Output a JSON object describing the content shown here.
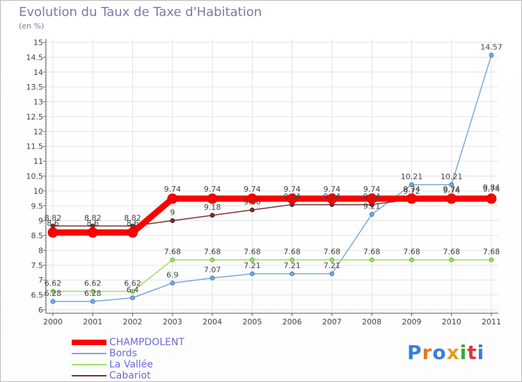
{
  "title": "Evolution du Taux de Taxe d'Habitation",
  "unit_label": "(en %)",
  "logo_text": "Proxiti",
  "chart_data": {
    "type": "line",
    "title": "Evolution du Taux de Taxe d'Habitation",
    "ylabel": "(en %)",
    "xlabel": "",
    "x": [
      "2000",
      "2001",
      "2002",
      "2003",
      "2004",
      "2005",
      "2006",
      "2007",
      "2008",
      "2009",
      "2010",
      "2011"
    ],
    "ylim": [
      6,
      15
    ],
    "yticks": [
      "6",
      "6.5",
      "7",
      "7.5",
      "8",
      "8.5",
      "9",
      "9.5",
      "10",
      "10.5",
      "11",
      "11.5",
      "12",
      "12.5",
      "13",
      "13.5",
      "14",
      "14.5",
      "15"
    ],
    "grid": true,
    "legend_position": "bottom-left",
    "series": [
      {
        "name": "CHAMPDOLENT",
        "color": "#ff0000",
        "values": [
          8.6,
          8.6,
          8.6,
          9.74,
          9.74,
          9.74,
          9.74,
          9.74,
          9.74,
          9.74,
          9.74,
          9.74
        ],
        "labels": [
          "8.6",
          "8.6",
          "8.6",
          "9.74",
          "9.74",
          "9.74",
          "9.74",
          "9.74",
          "9.74",
          "9.74",
          "9.74",
          "9.74"
        ]
      },
      {
        "name": "Bords",
        "color": "#7aa8d8",
        "values": [
          6.28,
          6.28,
          6.4,
          6.9,
          7.07,
          7.21,
          7.21,
          7.21,
          9.21,
          10.21,
          10.21,
          14.57
        ],
        "labels": [
          "6.28",
          "6.28",
          "6.4",
          "6.9",
          "7.07",
          "7.21",
          "7.21",
          "7.21",
          "9.21",
          "10.21",
          "10.21",
          "14.57"
        ]
      },
      {
        "name": "La Vallée",
        "color": "#99e066",
        "values": [
          6.62,
          6.62,
          6.62,
          7.68,
          7.68,
          7.68,
          7.68,
          7.68,
          7.68,
          7.68,
          7.68,
          7.68
        ],
        "labels": [
          "6.62",
          "6.62",
          "6.62",
          "7.68",
          "7.68",
          "7.68",
          "7.68",
          "7.68",
          "7.68",
          "7.68",
          "7.68",
          "7.68"
        ]
      },
      {
        "name": "Cabariot",
        "color": "#7a2f2f",
        "values": [
          8.82,
          8.82,
          8.82,
          9,
          9.18,
          9.36,
          9.54,
          9.54,
          9.54,
          9.72,
          9.74,
          9.84
        ],
        "labels": [
          "8.82",
          "8.82",
          "8.82",
          "9",
          "9.18",
          "9.36",
          "9.54",
          "9.54",
          "9.54",
          "9.72",
          "9.74",
          "9.84"
        ]
      }
    ]
  }
}
